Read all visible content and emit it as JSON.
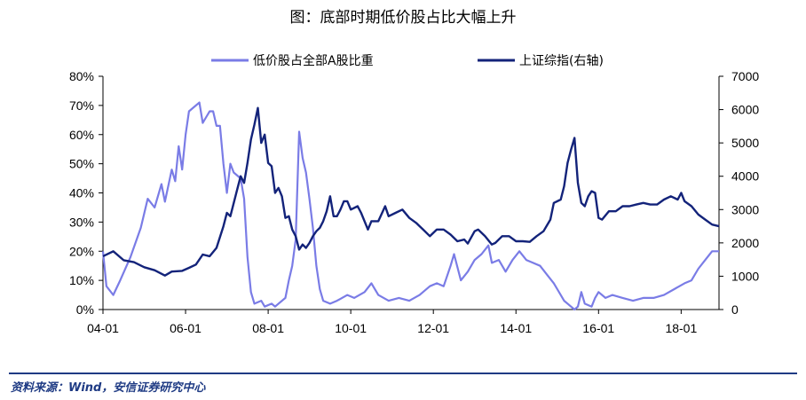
{
  "chart_data": {
    "type": "line",
    "title": "图：底部时期低价股占比大幅上升",
    "source": "资料来源：Wind，安信证券研究中心",
    "colors": {
      "left_series": "#7a7ce6",
      "right_series": "#13237a",
      "rule": "#1f3b84"
    },
    "x_ticks": [
      "04-01",
      "06-01",
      "08-01",
      "10-01",
      "12-01",
      "14-01",
      "16-01",
      "18-01"
    ],
    "x_range": [
      "2004-01",
      "2018-12"
    ],
    "y_left": {
      "ticks": [
        "0%",
        "10%",
        "20%",
        "30%",
        "40%",
        "50%",
        "60%",
        "70%",
        "80%"
      ],
      "range": [
        0,
        80
      ]
    },
    "y_right": {
      "ticks": [
        "0",
        "1000",
        "2000",
        "3000",
        "4000",
        "5000",
        "6000",
        "7000"
      ],
      "range": [
        0,
        7000
      ]
    },
    "legend_placement": "top",
    "series": [
      {
        "name": "低价股占全部A股比重",
        "axis": "left",
        "unit": "%",
        "points": [
          [
            "2004-01",
            20
          ],
          [
            "2004-02",
            8
          ],
          [
            "2004-04",
            5
          ],
          [
            "2004-06",
            10
          ],
          [
            "2004-09",
            18
          ],
          [
            "2004-12",
            28
          ],
          [
            "2005-02",
            38
          ],
          [
            "2005-04",
            35
          ],
          [
            "2005-06",
            43
          ],
          [
            "2005-07",
            37
          ],
          [
            "2005-09",
            48
          ],
          [
            "2005-10",
            44
          ],
          [
            "2005-11",
            56
          ],
          [
            "2005-12",
            48
          ],
          [
            "2006-01",
            60
          ],
          [
            "2006-02",
            68
          ],
          [
            "2006-04",
            70
          ],
          [
            "2006-05",
            71
          ],
          [
            "2006-06",
            64
          ],
          [
            "2006-07",
            66
          ],
          [
            "2006-08",
            68
          ],
          [
            "2006-09",
            68
          ],
          [
            "2006-10",
            63
          ],
          [
            "2006-11",
            63
          ],
          [
            "2006-12",
            50
          ],
          [
            "2007-01",
            40
          ],
          [
            "2007-02",
            50
          ],
          [
            "2007-03",
            47
          ],
          [
            "2007-05",
            45
          ],
          [
            "2007-06",
            38
          ],
          [
            "2007-07",
            18
          ],
          [
            "2007-08",
            6
          ],
          [
            "2007-09",
            2
          ],
          [
            "2007-11",
            3
          ],
          [
            "2007-12",
            1
          ],
          [
            "2008-02",
            2
          ],
          [
            "2008-03",
            1
          ],
          [
            "2008-04",
            2
          ],
          [
            "2008-06",
            4
          ],
          [
            "2008-07",
            10
          ],
          [
            "2008-08",
            15
          ],
          [
            "2008-09",
            24
          ],
          [
            "2008-10",
            61
          ],
          [
            "2008-11",
            52
          ],
          [
            "2008-12",
            47
          ],
          [
            "2009-01",
            38
          ],
          [
            "2009-02",
            28
          ],
          [
            "2009-03",
            15
          ],
          [
            "2009-04",
            7
          ],
          [
            "2009-05",
            3
          ],
          [
            "2009-07",
            2
          ],
          [
            "2009-09",
            3
          ],
          [
            "2009-12",
            5
          ],
          [
            "2010-02",
            4
          ],
          [
            "2010-05",
            6
          ],
          [
            "2010-07",
            9
          ],
          [
            "2010-09",
            5
          ],
          [
            "2010-12",
            3
          ],
          [
            "2011-03",
            4
          ],
          [
            "2011-06",
            3
          ],
          [
            "2011-09",
            5
          ],
          [
            "2011-12",
            8
          ],
          [
            "2012-02",
            9
          ],
          [
            "2012-04",
            8
          ],
          [
            "2012-06",
            15
          ],
          [
            "2012-07",
            19
          ],
          [
            "2012-09",
            10
          ],
          [
            "2012-11",
            13
          ],
          [
            "2013-01",
            17
          ],
          [
            "2013-03",
            19
          ],
          [
            "2013-05",
            22
          ],
          [
            "2013-06",
            16
          ],
          [
            "2013-08",
            17
          ],
          [
            "2013-10",
            13
          ],
          [
            "2013-12",
            17
          ],
          [
            "2014-02",
            20
          ],
          [
            "2014-04",
            17
          ],
          [
            "2014-06",
            16
          ],
          [
            "2014-08",
            15
          ],
          [
            "2014-10",
            12
          ],
          [
            "2014-12",
            9
          ],
          [
            "2015-01",
            7
          ],
          [
            "2015-03",
            3
          ],
          [
            "2015-05",
            1
          ],
          [
            "2015-06",
            0
          ],
          [
            "2015-07",
            1
          ],
          [
            "2015-08",
            6
          ],
          [
            "2015-09",
            2
          ],
          [
            "2015-11",
            1
          ],
          [
            "2015-12",
            4
          ],
          [
            "2016-01",
            6
          ],
          [
            "2016-03",
            4
          ],
          [
            "2016-05",
            5
          ],
          [
            "2016-08",
            4
          ],
          [
            "2016-11",
            3
          ],
          [
            "2017-02",
            4
          ],
          [
            "2017-05",
            4
          ],
          [
            "2017-08",
            5
          ],
          [
            "2017-11",
            7
          ],
          [
            "2018-02",
            9
          ],
          [
            "2018-04",
            10
          ],
          [
            "2018-06",
            14
          ],
          [
            "2018-08",
            17
          ],
          [
            "2018-10",
            20
          ],
          [
            "2018-12",
            20
          ]
        ]
      },
      {
        "name": "上证综指(右轴)",
        "axis": "right",
        "unit": "pt",
        "points": [
          [
            "2004-01",
            1600
          ],
          [
            "2004-04",
            1750
          ],
          [
            "2004-07",
            1480
          ],
          [
            "2004-10",
            1420
          ],
          [
            "2005-01",
            1270
          ],
          [
            "2005-04",
            1180
          ],
          [
            "2005-07",
            1020
          ],
          [
            "2005-09",
            1140
          ],
          [
            "2005-12",
            1160
          ],
          [
            "2006-02",
            1250
          ],
          [
            "2006-04",
            1350
          ],
          [
            "2006-06",
            1650
          ],
          [
            "2006-08",
            1600
          ],
          [
            "2006-10",
            1850
          ],
          [
            "2006-12",
            2500
          ],
          [
            "2007-01",
            2900
          ],
          [
            "2007-02",
            2800
          ],
          [
            "2007-04",
            3600
          ],
          [
            "2007-05",
            4000
          ],
          [
            "2007-06",
            3800
          ],
          [
            "2007-07",
            4400
          ],
          [
            "2007-08",
            5100
          ],
          [
            "2007-09",
            5550
          ],
          [
            "2007-10",
            6050
          ],
          [
            "2007-11",
            5000
          ],
          [
            "2007-12",
            5250
          ],
          [
            "2008-01",
            4400
          ],
          [
            "2008-02",
            4300
          ],
          [
            "2008-03",
            3500
          ],
          [
            "2008-04",
            3650
          ],
          [
            "2008-05",
            3400
          ],
          [
            "2008-06",
            2750
          ],
          [
            "2008-07",
            2800
          ],
          [
            "2008-08",
            2400
          ],
          [
            "2008-09",
            2200
          ],
          [
            "2008-10",
            1800
          ],
          [
            "2008-11",
            1950
          ],
          [
            "2008-12",
            1850
          ],
          [
            "2009-01",
            2000
          ],
          [
            "2009-02",
            2200
          ],
          [
            "2009-03",
            2350
          ],
          [
            "2009-04",
            2450
          ],
          [
            "2009-05",
            2650
          ],
          [
            "2009-06",
            2950
          ],
          [
            "2009-07",
            3400
          ],
          [
            "2009-08",
            2800
          ],
          [
            "2009-09",
            2800
          ],
          [
            "2009-10",
            3000
          ],
          [
            "2009-11",
            3250
          ],
          [
            "2009-12",
            3250
          ],
          [
            "2010-01",
            3000
          ],
          [
            "2010-03",
            3100
          ],
          [
            "2010-04",
            2900
          ],
          [
            "2010-06",
            2400
          ],
          [
            "2010-07",
            2650
          ],
          [
            "2010-09",
            2650
          ],
          [
            "2010-11",
            3100
          ],
          [
            "2010-12",
            2800
          ],
          [
            "2011-02",
            2900
          ],
          [
            "2011-04",
            3000
          ],
          [
            "2011-06",
            2750
          ],
          [
            "2011-08",
            2600
          ],
          [
            "2011-10",
            2400
          ],
          [
            "2011-12",
            2200
          ],
          [
            "2012-02",
            2400
          ],
          [
            "2012-04",
            2400
          ],
          [
            "2012-06",
            2250
          ],
          [
            "2012-08",
            2050
          ],
          [
            "2012-10",
            2100
          ],
          [
            "2012-11",
            1980
          ],
          [
            "2013-01",
            2350
          ],
          [
            "2013-02",
            2400
          ],
          [
            "2013-04",
            2200
          ],
          [
            "2013-06",
            1950
          ],
          [
            "2013-07",
            2000
          ],
          [
            "2013-09",
            2200
          ],
          [
            "2013-11",
            2200
          ],
          [
            "2014-01",
            2050
          ],
          [
            "2014-03",
            2050
          ],
          [
            "2014-05",
            2030
          ],
          [
            "2014-07",
            2200
          ],
          [
            "2014-09",
            2350
          ],
          [
            "2014-11",
            2700
          ],
          [
            "2014-12",
            3200
          ],
          [
            "2015-02",
            3300
          ],
          [
            "2015-03",
            3700
          ],
          [
            "2015-04",
            4400
          ],
          [
            "2015-05",
            4800
          ],
          [
            "2015-06",
            5150
          ],
          [
            "2015-07",
            3800
          ],
          [
            "2015-08",
            3200
          ],
          [
            "2015-09",
            3100
          ],
          [
            "2015-10",
            3400
          ],
          [
            "2015-11",
            3550
          ],
          [
            "2015-12",
            3500
          ],
          [
            "2016-01",
            2750
          ],
          [
            "2016-02",
            2700
          ],
          [
            "2016-04",
            2950
          ],
          [
            "2016-06",
            2950
          ],
          [
            "2016-08",
            3100
          ],
          [
            "2016-10",
            3100
          ],
          [
            "2016-12",
            3150
          ],
          [
            "2017-02",
            3200
          ],
          [
            "2017-04",
            3150
          ],
          [
            "2017-06",
            3150
          ],
          [
            "2017-08",
            3300
          ],
          [
            "2017-10",
            3400
          ],
          [
            "2017-12",
            3300
          ],
          [
            "2018-01",
            3500
          ],
          [
            "2018-02",
            3250
          ],
          [
            "2018-04",
            3100
          ],
          [
            "2018-06",
            2850
          ],
          [
            "2018-08",
            2700
          ],
          [
            "2018-10",
            2550
          ],
          [
            "2018-12",
            2500
          ]
        ]
      }
    ]
  }
}
